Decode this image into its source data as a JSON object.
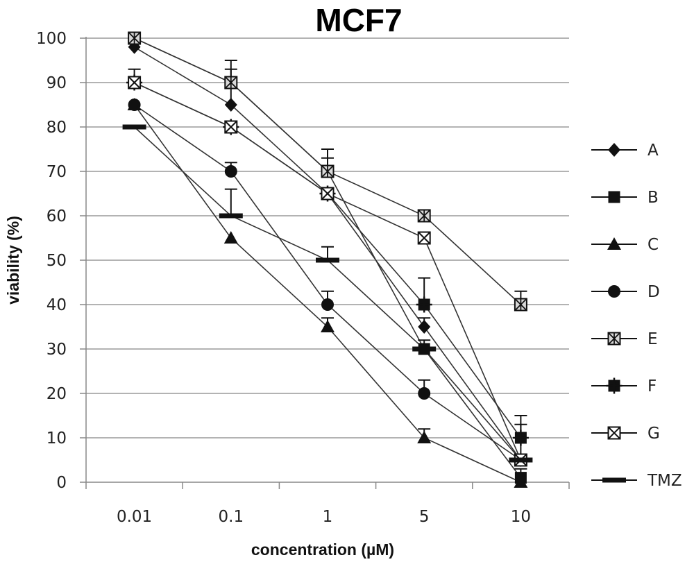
{
  "chart_data": {
    "type": "line",
    "title": "MCF7",
    "xlabel": "concentration (µM)",
    "ylabel": "viability (%)",
    "categories": [
      "0.01",
      "0.1",
      "1",
      "5",
      "10"
    ],
    "y_ticks": [
      0,
      10,
      20,
      30,
      40,
      50,
      60,
      70,
      80,
      90,
      100
    ],
    "ylim": [
      0,
      100
    ],
    "grid": "horizontal",
    "legend_position": "right",
    "series": [
      {
        "name": "A",
        "marker": "diamond",
        "values": [
          98,
          85,
          65,
          35,
          5
        ],
        "errors": [
          0,
          4,
          0,
          2,
          0
        ]
      },
      {
        "name": "B",
        "marker": "square",
        "values": [
          100,
          90,
          70,
          30,
          1
        ],
        "errors": [
          0,
          3,
          3,
          2,
          2
        ]
      },
      {
        "name": "C",
        "marker": "triangle",
        "values": [
          85,
          55,
          35,
          10,
          0
        ],
        "errors": [
          0,
          0,
          2,
          2,
          0
        ]
      },
      {
        "name": "D",
        "marker": "circle",
        "values": [
          85,
          70,
          40,
          20,
          5
        ],
        "errors": [
          0,
          2,
          3,
          3,
          0
        ]
      },
      {
        "name": "E",
        "marker": "star-square",
        "values": [
          100,
          90,
          70,
          60,
          40
        ],
        "errors": [
          0,
          5,
          5,
          0,
          3
        ]
      },
      {
        "name": "F",
        "marker": "cross-square",
        "values": [
          90,
          80,
          65,
          40,
          10
        ],
        "errors": [
          3,
          0,
          0,
          6,
          5
        ]
      },
      {
        "name": "G",
        "marker": "x-square",
        "values": [
          90,
          80,
          65,
          55,
          5
        ],
        "errors": [
          0,
          0,
          0,
          0,
          0
        ]
      },
      {
        "name": "TMZ",
        "marker": "dash",
        "values": [
          80,
          60,
          50,
          30,
          5
        ],
        "errors": [
          0,
          6,
          3,
          0,
          8
        ]
      }
    ]
  }
}
